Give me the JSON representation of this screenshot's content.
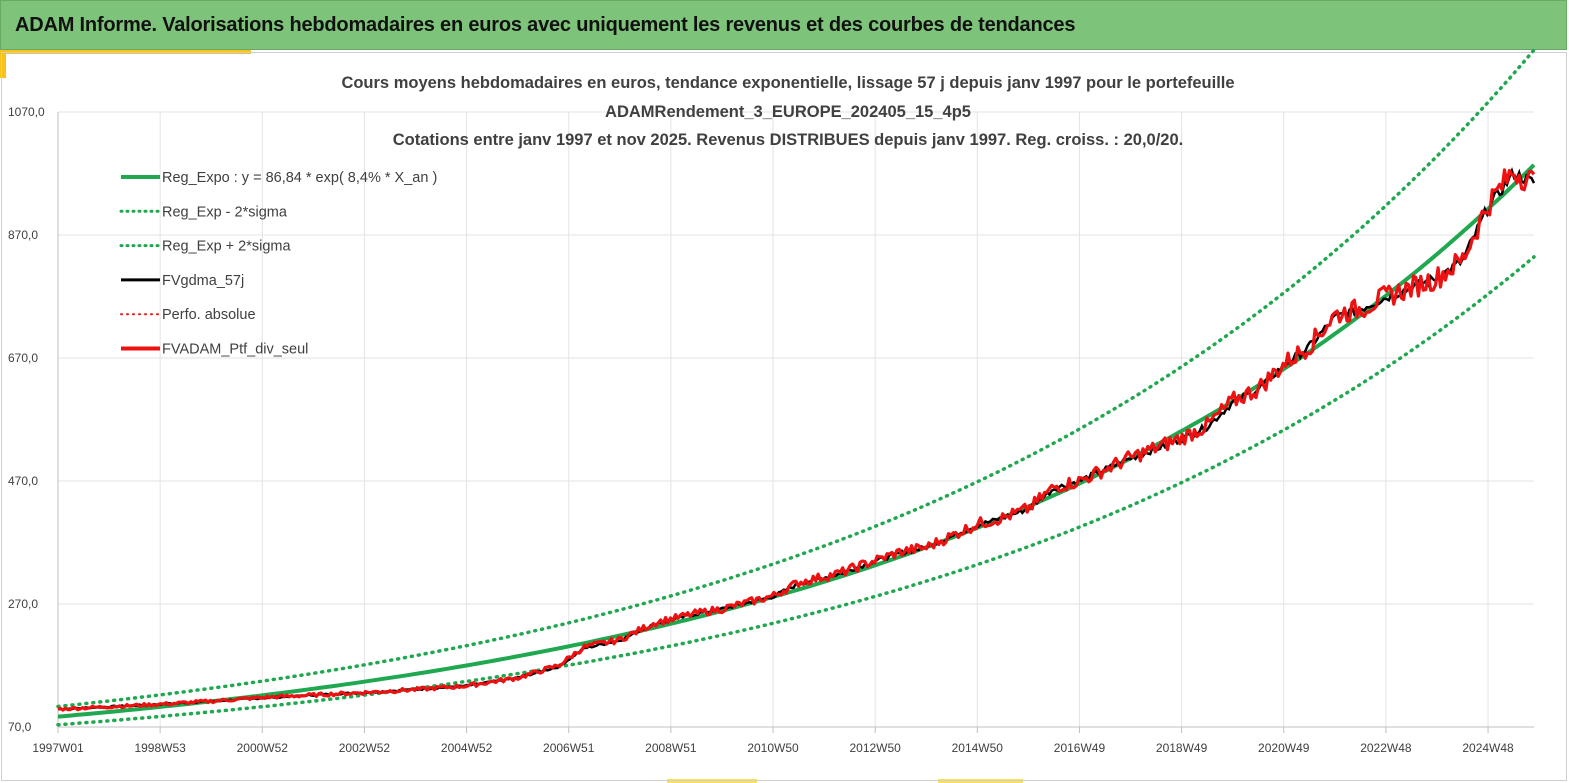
{
  "header": {
    "title": "ADAM Informe. Valorisations hebdomadaires en euros avec uniquement les revenus et des courbes de tendances"
  },
  "colors": {
    "header_bg": "#7dc47a",
    "accent": "#f7c21b",
    "reg": "#1fa84f",
    "black": "#000000",
    "red": "#ee1111",
    "grid": "#e3e3e3",
    "text": "#404040"
  },
  "chart_data": {
    "type": "line",
    "title_lines": [
      "Cours moyens hebdomadaires  en euros, tendance exponentielle, lissage 57 j depuis janv 1997 pour le portefeuille",
      "ADAMRendement_3_EUROPE_202405_15_4p5",
      "Cotations  entre janv 1997 et nov 2025. Revenus DISTRIBUES depuis janv 1997. Reg. croiss. : 20,0/20."
    ],
    "xlabel": "",
    "ylabel": "",
    "ylim": [
      70,
      1070
    ],
    "xlim": [
      1997.0,
      2025.9
    ],
    "y_ticks": [
      70,
      270,
      470,
      670,
      870,
      1070
    ],
    "y_tick_labels": [
      "70,0",
      "270,0",
      "470,0",
      "670,0",
      "870,0",
      "1070,0"
    ],
    "x_tick_labels": [
      {
        "label": "1997W01",
        "x": 1997.0
      },
      {
        "label": "1998W53",
        "x": 1999.0
      },
      {
        "label": "2000W52",
        "x": 2001.0
      },
      {
        "label": "2002W52",
        "x": 2003.0
      },
      {
        "label": "2004W52",
        "x": 2005.0
      },
      {
        "label": "2006W51",
        "x": 2007.0
      },
      {
        "label": "2008W51",
        "x": 2009.0
      },
      {
        "label": "2010W50",
        "x": 2011.0
      },
      {
        "label": "2012W50",
        "x": 2013.0
      },
      {
        "label": "2014W50",
        "x": 2015.0
      },
      {
        "label": "2016W49",
        "x": 2017.0
      },
      {
        "label": "2018W49",
        "x": 2019.0
      },
      {
        "label": "2020W49",
        "x": 2021.0
      },
      {
        "label": "2022W48",
        "x": 2023.0
      },
      {
        "label": "2024W48",
        "x": 2025.0
      }
    ],
    "legend": [
      {
        "key": "reg",
        "label": "Reg_Expo : y = 86,84 * exp( 8,4% *  X_an )",
        "style": "solid",
        "color": "#1fa84f",
        "width": 4
      },
      {
        "key": "reg_minus",
        "label": "Reg_Exp - 2*sigma",
        "style": "dotted",
        "color": "#1fa84f",
        "width": 3
      },
      {
        "key": "reg_plus",
        "label": "Reg_Exp + 2*sigma",
        "style": "dotted",
        "color": "#1fa84f",
        "width": 3
      },
      {
        "key": "fvgdma",
        "label": "FVgdma_57j",
        "style": "solid",
        "color": "#000000",
        "width": 3
      },
      {
        "key": "perfo",
        "label": "Perfo. absolue",
        "style": "dotted",
        "color": "#ee1111",
        "width": 2
      },
      {
        "key": "fvadam",
        "label": "FVADAM_Ptf_div_seul",
        "style": "solid",
        "color": "#ee1111",
        "width": 4
      }
    ],
    "regression": {
      "a": 86.84,
      "rate": 0.084,
      "sigma_factor": 0.19
    },
    "series": [
      {
        "name": "FVADAM_Ptf_div_seul",
        "x": [
          1997.0,
          1998.0,
          1999.0,
          2000.0,
          2001.0,
          2002.0,
          2003.0,
          2004.0,
          2005.0,
          2006.0,
          2006.8,
          2007.3,
          2008.0,
          2008.7,
          2009.5,
          2010.0,
          2011.0,
          2011.5,
          2012.3,
          2012.8,
          2013.5,
          2014.0,
          2015.0,
          2015.5,
          2016.0,
          2016.5,
          2017.0,
          2018.0,
          2019.0,
          2019.5,
          2020.0,
          2020.5,
          2021.0,
          2021.5,
          2022.0,
          2022.5,
          2023.0,
          2023.5,
          2024.0,
          2024.5,
          2025.0,
          2025.5,
          2025.9
        ],
        "values": [
          99,
          103,
          107,
          112,
          118,
          122,
          126,
          131,
          137,
          150,
          170,
          200,
          212,
          240,
          255,
          262,
          283,
          305,
          320,
          335,
          355,
          362,
          400,
          410,
          425,
          460,
          470,
          508,
          540,
          560,
          600,
          620,
          660,
          690,
          740,
          750,
          770,
          785,
          800,
          830,
          920,
          975,
          955
        ]
      },
      {
        "name": "FVgdma_57j",
        "x": [
          1997.0,
          1998.0,
          1999.0,
          2000.0,
          2001.0,
          2002.0,
          2003.0,
          2004.0,
          2005.0,
          2006.0,
          2006.8,
          2007.3,
          2008.0,
          2008.7,
          2009.5,
          2010.0,
          2011.0,
          2011.5,
          2012.3,
          2012.8,
          2013.5,
          2014.0,
          2015.0,
          2015.5,
          2016.0,
          2016.5,
          2017.0,
          2018.0,
          2019.0,
          2019.5,
          2020.0,
          2020.5,
          2021.0,
          2021.5,
          2022.0,
          2022.5,
          2023.0,
          2023.5,
          2024.0,
          2024.5,
          2025.0,
          2025.5,
          2025.9
        ],
        "values": [
          99,
          103,
          107,
          112,
          117,
          122,
          126,
          131,
          137,
          150,
          168,
          198,
          211,
          238,
          254,
          262,
          282,
          303,
          319,
          334,
          353,
          362,
          398,
          410,
          425,
          458,
          470,
          507,
          538,
          558,
          598,
          619,
          658,
          688,
          736,
          750,
          768,
          784,
          800,
          828,
          915,
          970,
          955
        ]
      }
    ]
  }
}
